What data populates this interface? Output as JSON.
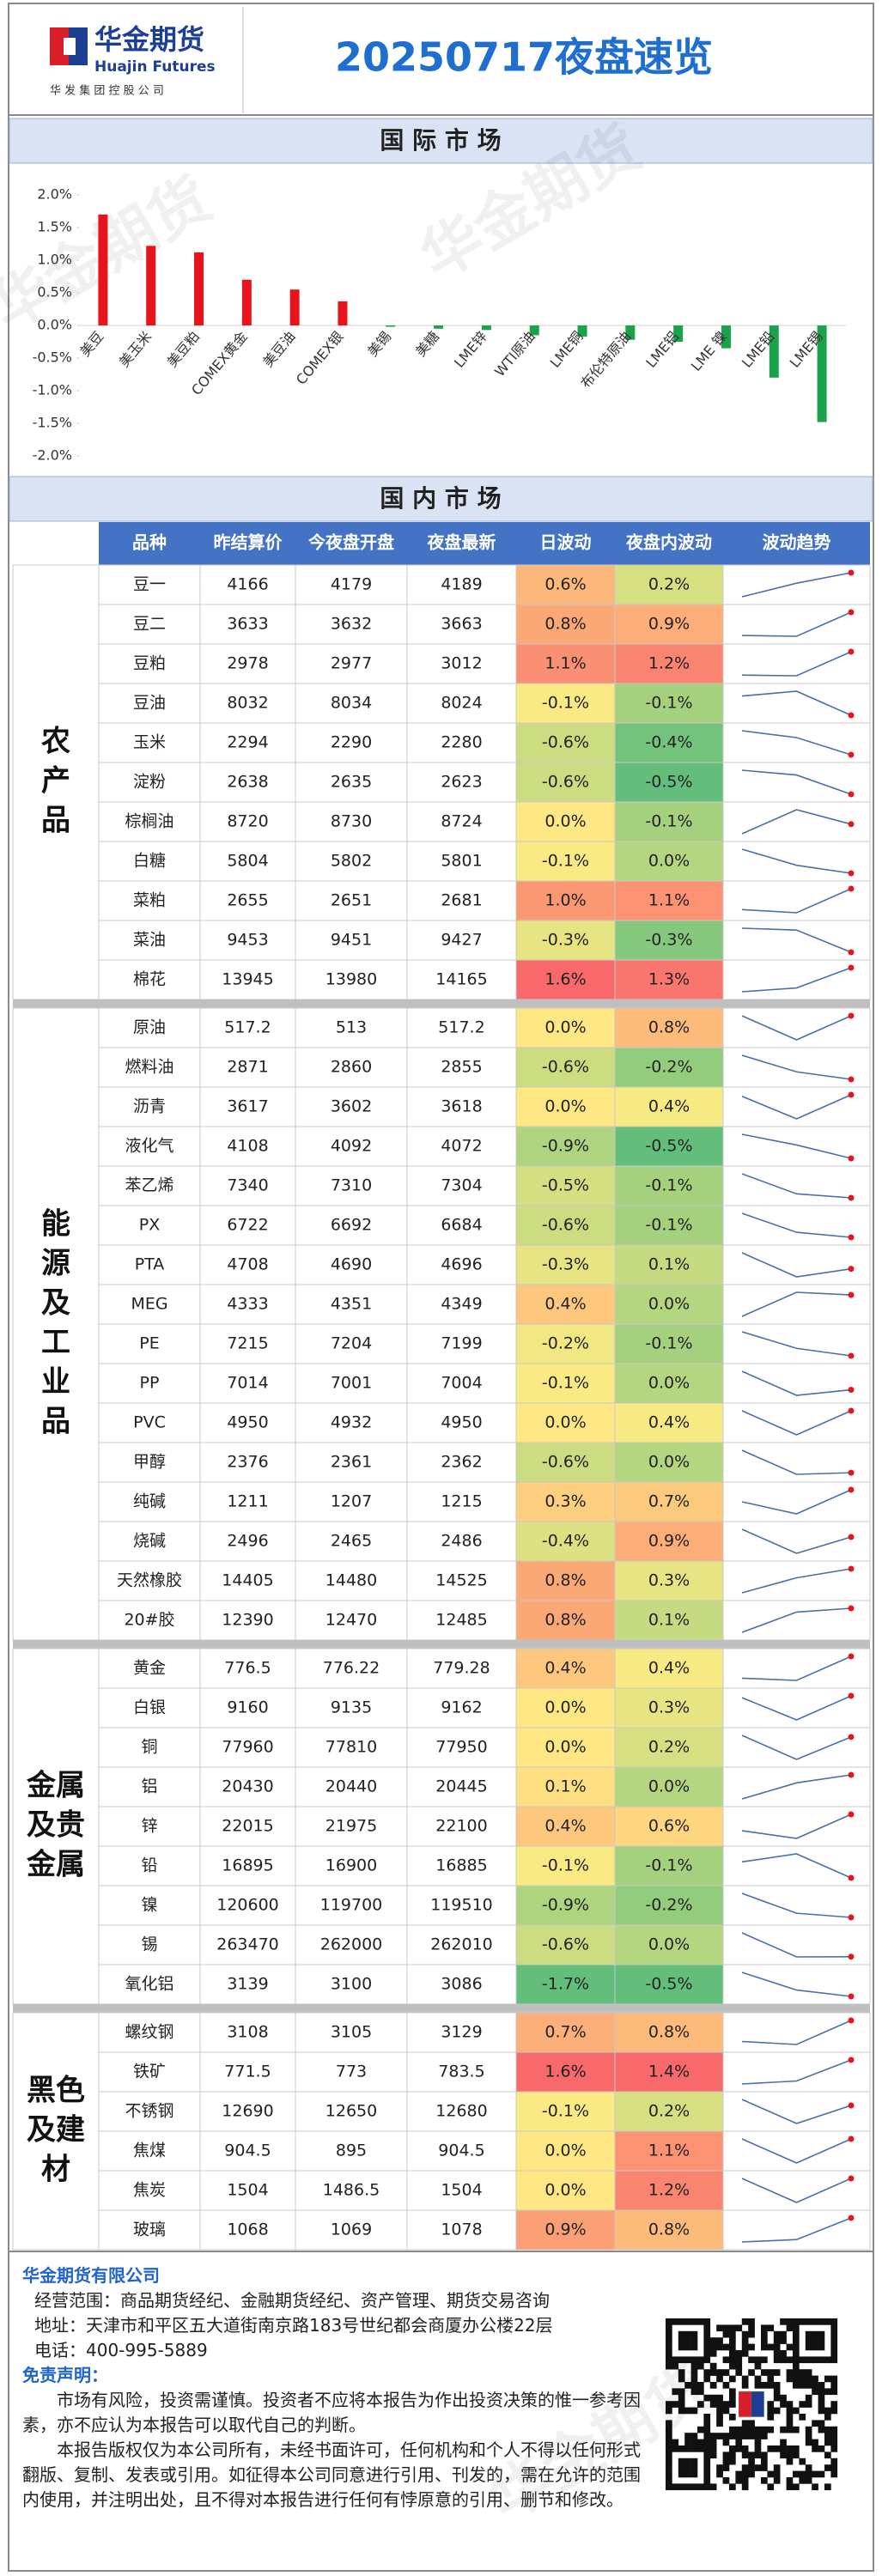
{
  "header": {
    "brand": "华金期货",
    "brand_en": "Huajin Futures",
    "parent": "华 发 集 团 控 股 公 司",
    "title": "20250717夜盘速览"
  },
  "watermark": "华金期货",
  "international": {
    "title": "国 际 市 场"
  },
  "chart_data": {
    "type": "bar",
    "categories": [
      "美豆",
      "美玉米",
      "美豆粕",
      "COMEX黄金",
      "美豆油",
      "COMEX银",
      "美锡",
      "美糖",
      "LME锌",
      "WTI原油",
      "LME铜",
      "布伦特原油",
      "LME铝",
      "LME 镍",
      "LME铅",
      "LME锡"
    ],
    "values": [
      1.7,
      1.22,
      1.12,
      0.7,
      0.55,
      0.37,
      -0.02,
      -0.05,
      -0.07,
      -0.15,
      -0.17,
      -0.22,
      -0.25,
      -0.35,
      -0.8,
      -1.48
    ],
    "positive_color": "#e8141c",
    "negative_color": "#1aa34a",
    "ylim": [
      -2.0,
      2.0
    ],
    "yticks": [
      {
        "value": -2.0,
        "label": "-2.0%"
      },
      {
        "value": -1.5,
        "label": "-1.5%"
      },
      {
        "value": -1.0,
        "label": "-1.0%"
      },
      {
        "value": -0.5,
        "label": "-0.5%"
      },
      {
        "value": 0.0,
        "label": "0.0%"
      },
      {
        "value": 0.5,
        "label": "0.5%"
      },
      {
        "value": 1.0,
        "label": "1.0%"
      },
      {
        "value": 1.5,
        "label": "1.5%"
      },
      {
        "value": 2.0,
        "label": "2.0%"
      }
    ],
    "grid": false
  },
  "domestic": {
    "title": "国 内 市 场",
    "columns": [
      "品种",
      "昨结算价",
      "今夜盘开盘",
      "夜盘最新",
      "日波动",
      "夜盘内波动",
      "波动趋势"
    ],
    "groups": [
      {
        "label_lines": [
          "农",
          "产",
          "品"
        ],
        "rows": [
          {
            "name": "豆一",
            "settle": 4166,
            "open": 4179,
            "latest": 4189,
            "day": "0.6%",
            "night": "0.2%"
          },
          {
            "name": "豆二",
            "settle": 3633,
            "open": 3632,
            "latest": 3663,
            "day": "0.8%",
            "night": "0.9%"
          },
          {
            "name": "豆粕",
            "settle": 2978,
            "open": 2977,
            "latest": 3012,
            "day": "1.1%",
            "night": "1.2%"
          },
          {
            "name": "豆油",
            "settle": 8032,
            "open": 8034,
            "latest": 8024,
            "day": "-0.1%",
            "night": "-0.1%"
          },
          {
            "name": "玉米",
            "settle": 2294,
            "open": 2290,
            "latest": 2280,
            "day": "-0.6%",
            "night": "-0.4%"
          },
          {
            "name": "淀粉",
            "settle": 2638,
            "open": 2635,
            "latest": 2623,
            "day": "-0.6%",
            "night": "-0.5%"
          },
          {
            "name": "棕榈油",
            "settle": 8720,
            "open": 8730,
            "latest": 8724,
            "day": "0.0%",
            "night": "-0.1%"
          },
          {
            "name": "白糖",
            "settle": 5804,
            "open": 5802,
            "latest": 5801,
            "day": "-0.1%",
            "night": "0.0%"
          },
          {
            "name": "菜粕",
            "settle": 2655,
            "open": 2651,
            "latest": 2681,
            "day": "1.0%",
            "night": "1.1%"
          },
          {
            "name": "菜油",
            "settle": 9453,
            "open": 9451,
            "latest": 9427,
            "day": "-0.3%",
            "night": "-0.3%"
          },
          {
            "name": "棉花",
            "settle": 13945,
            "open": 13980,
            "latest": 14165,
            "day": "1.6%",
            "night": "1.3%"
          }
        ]
      },
      {
        "label_lines": [
          "能",
          "源",
          "及",
          "工",
          "业",
          "品"
        ],
        "rows": [
          {
            "name": "原油",
            "settle": 517.2,
            "open": 513,
            "latest": 517.2,
            "day": "0.0%",
            "night": "0.8%"
          },
          {
            "name": "燃料油",
            "settle": 2871,
            "open": 2860,
            "latest": 2855,
            "day": "-0.6%",
            "night": "-0.2%"
          },
          {
            "name": "沥青",
            "settle": 3617,
            "open": 3602,
            "latest": 3618,
            "day": "0.0%",
            "night": "0.4%"
          },
          {
            "name": "液化气",
            "settle": 4108,
            "open": 4092,
            "latest": 4072,
            "day": "-0.9%",
            "night": "-0.5%"
          },
          {
            "name": "苯乙烯",
            "settle": 7340,
            "open": 7310,
            "latest": 7304,
            "day": "-0.5%",
            "night": "-0.1%"
          },
          {
            "name": "PX",
            "settle": 6722,
            "open": 6692,
            "latest": 6684,
            "day": "-0.6%",
            "night": "-0.1%"
          },
          {
            "name": "PTA",
            "settle": 4708,
            "open": 4690,
            "latest": 4696,
            "day": "-0.3%",
            "night": "0.1%"
          },
          {
            "name": "MEG",
            "settle": 4333,
            "open": 4351,
            "latest": 4349,
            "day": "0.4%",
            "night": "0.0%"
          },
          {
            "name": "PE",
            "settle": 7215,
            "open": 7204,
            "latest": 7199,
            "day": "-0.2%",
            "night": "-0.1%"
          },
          {
            "name": "PP",
            "settle": 7014,
            "open": 7001,
            "latest": 7004,
            "day": "-0.1%",
            "night": "0.0%"
          },
          {
            "name": "PVC",
            "settle": 4950,
            "open": 4932,
            "latest": 4950,
            "day": "0.0%",
            "night": "0.4%"
          },
          {
            "name": "甲醇",
            "settle": 2376,
            "open": 2361,
            "latest": 2362,
            "day": "-0.6%",
            "night": "0.0%"
          },
          {
            "name": "纯碱",
            "settle": 1211,
            "open": 1207,
            "latest": 1215,
            "day": "0.3%",
            "night": "0.7%"
          },
          {
            "name": "烧碱",
            "settle": 2496,
            "open": 2465,
            "latest": 2486,
            "day": "-0.4%",
            "night": "0.9%"
          },
          {
            "name": "天然橡胶",
            "settle": 14405,
            "open": 14480,
            "latest": 14525,
            "day": "0.8%",
            "night": "0.3%"
          },
          {
            "name": "20#胶",
            "settle": 12390,
            "open": 12470,
            "latest": 12485,
            "day": "0.8%",
            "night": "0.1%"
          }
        ]
      },
      {
        "label_lines": [
          "金属",
          "及贵",
          "金属"
        ],
        "rows": [
          {
            "name": "黄金",
            "settle": 776.5,
            "open": 776.22,
            "latest": 779.28,
            "day": "0.4%",
            "night": "0.4%"
          },
          {
            "name": "白银",
            "settle": 9160,
            "open": 9135,
            "latest": 9162,
            "day": "0.0%",
            "night": "0.3%"
          },
          {
            "name": "铜",
            "settle": 77960,
            "open": 77810,
            "latest": 77950,
            "day": "0.0%",
            "night": "0.2%"
          },
          {
            "name": "铝",
            "settle": 20430,
            "open": 20440,
            "latest": 20445,
            "day": "0.1%",
            "night": "0.0%"
          },
          {
            "name": "锌",
            "settle": 22015,
            "open": 21975,
            "latest": 22100,
            "day": "0.4%",
            "night": "0.6%"
          },
          {
            "name": "铅",
            "settle": 16895,
            "open": 16900,
            "latest": 16885,
            "day": "-0.1%",
            "night": "-0.1%"
          },
          {
            "name": "镍",
            "settle": 120600,
            "open": 119700,
            "latest": 119510,
            "day": "-0.9%",
            "night": "-0.2%"
          },
          {
            "name": "锡",
            "settle": 263470,
            "open": 262000,
            "latest": 262010,
            "day": "-0.6%",
            "night": "0.0%"
          },
          {
            "name": "氧化铝",
            "settle": 3139,
            "open": 3100,
            "latest": 3086,
            "day": "-1.7%",
            "night": "-0.5%"
          }
        ]
      },
      {
        "label_lines": [
          "黑色",
          "及建",
          "材"
        ],
        "rows": [
          {
            "name": "螺纹钢",
            "settle": 3108,
            "open": 3105,
            "latest": 3129,
            "day": "0.7%",
            "night": "0.8%"
          },
          {
            "name": "铁矿",
            "settle": 771.5,
            "open": 773,
            "latest": 783.5,
            "day": "1.6%",
            "night": "1.4%"
          },
          {
            "name": "不锈钢",
            "settle": 12690,
            "open": 12650,
            "latest": 12680,
            "day": "-0.1%",
            "night": "0.2%"
          },
          {
            "name": "焦煤",
            "settle": 904.5,
            "open": 895,
            "latest": 904.5,
            "day": "0.0%",
            "night": "1.1%"
          },
          {
            "name": "焦炭",
            "settle": 1504,
            "open": 1486.5,
            "latest": 1504,
            "day": "0.0%",
            "night": "1.2%"
          },
          {
            "name": "玻璃",
            "settle": 1068,
            "open": 1069,
            "latest": 1078,
            "day": "0.9%",
            "night": "0.8%"
          }
        ]
      }
    ]
  },
  "footer": {
    "company": "华金期货有限公司",
    "scope": "经营范围：商品期货经纪、金融期货经纪、资产管理、期货交易咨询",
    "address": "地址：天津市和平区五大道街南京路183号世纪都会商厦办公楼22层",
    "phone": "电话：400-995-5889",
    "disclaimer_title": "免责声明：",
    "paragraphs": [
      "市场有风险，投资需谨慎。投资者不应将本报告为作出投资决策的惟一参考因素，亦不应认为本报告可以取代自己的判断。",
      "本报告版权仅为本公司所有，未经书面许可，任何机构和个人不得以任何形式翻版、复制、发表或引用。如征得本公司同意进行引用、刊发的，需在允许的范围内使用，并注明出处，且不得对本报告进行任何有悖原意的引用、删节和修改。"
    ]
  }
}
